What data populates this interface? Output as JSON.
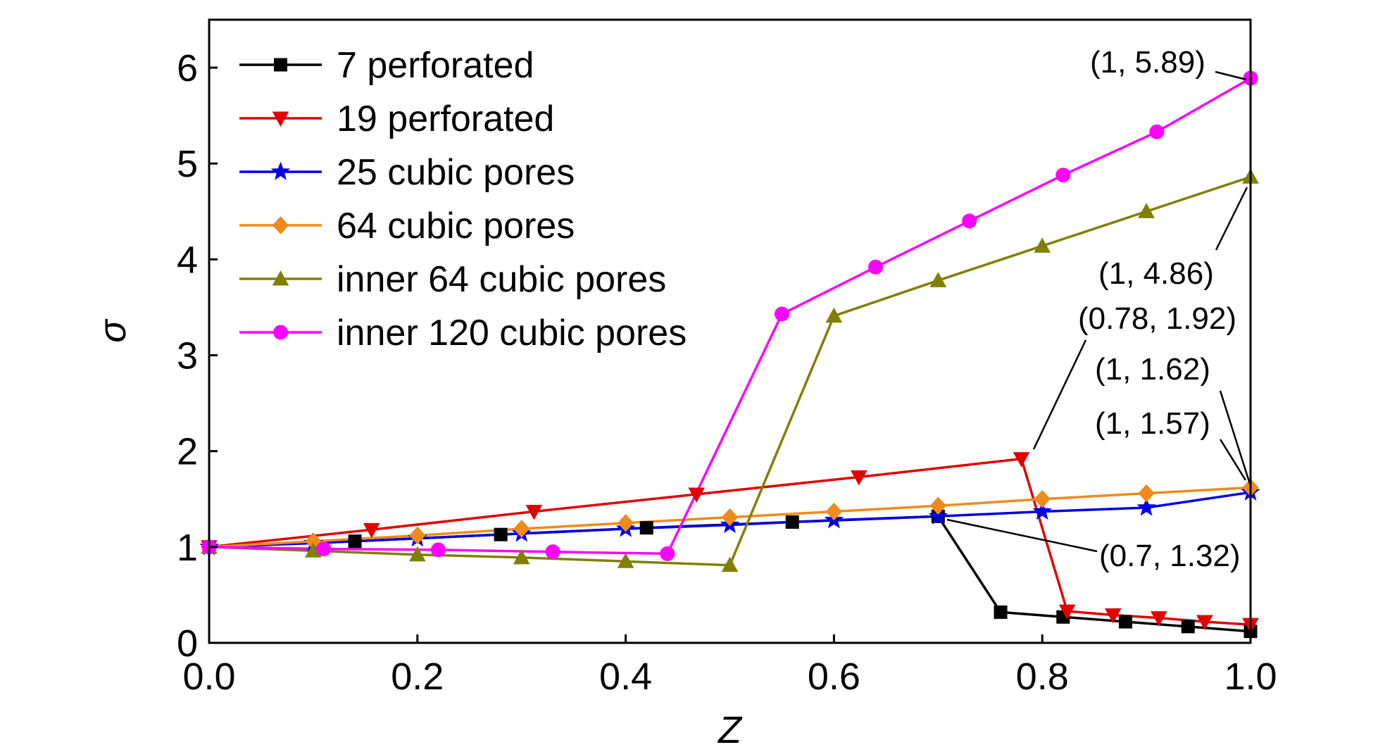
{
  "chart_data": {
    "type": "line",
    "xlabel": "Z",
    "ylabel": "σ",
    "xlim": [
      0,
      1
    ],
    "ylim": [
      0,
      6.5
    ],
    "xticks": [
      "0.0",
      "0.2",
      "0.4",
      "0.6",
      "0.8",
      "1.0"
    ],
    "xtick_values": [
      0,
      0.2,
      0.4,
      0.6,
      0.8,
      1.0
    ],
    "yticks": [
      "0",
      "1",
      "2",
      "3",
      "4",
      "5",
      "6"
    ],
    "ytick_values": [
      0,
      1,
      2,
      3,
      4,
      5,
      6
    ],
    "grid": false,
    "legend_position": "top-left",
    "series": [
      {
        "name": "7 perforated",
        "color": "#000000",
        "marker": "square",
        "x": [
          0,
          0.14,
          0.28,
          0.42,
          0.56,
          0.7,
          0.76,
          0.82,
          0.88,
          0.94,
          1.0
        ],
        "y": [
          1.0,
          1.06,
          1.13,
          1.2,
          1.26,
          1.32,
          0.32,
          0.27,
          0.22,
          0.17,
          0.12
        ]
      },
      {
        "name": "19 perforated",
        "color": "#e00000",
        "marker": "triangle-down",
        "x": [
          0,
          0.156,
          0.312,
          0.468,
          0.624,
          0.78,
          0.824,
          0.868,
          0.912,
          0.956,
          1.0
        ],
        "y": [
          1.0,
          1.18,
          1.37,
          1.55,
          1.73,
          1.92,
          0.33,
          0.29,
          0.26,
          0.22,
          0.19
        ]
      },
      {
        "name": "25 cubic pores",
        "color": "#0000e0",
        "marker": "star",
        "x": [
          0,
          0.1,
          0.2,
          0.3,
          0.4,
          0.5,
          0.6,
          0.7,
          0.8,
          0.9,
          1.0
        ],
        "y": [
          1.0,
          1.04,
          1.09,
          1.14,
          1.19,
          1.23,
          1.28,
          1.32,
          1.37,
          1.41,
          1.57
        ]
      },
      {
        "name": "64 cubic pores",
        "color": "#f08a1c",
        "marker": "diamond",
        "x": [
          0,
          0.1,
          0.2,
          0.3,
          0.4,
          0.5,
          0.6,
          0.7,
          0.8,
          0.9,
          1.0
        ],
        "y": [
          1.0,
          1.06,
          1.12,
          1.19,
          1.25,
          1.31,
          1.37,
          1.43,
          1.5,
          1.56,
          1.62
        ]
      },
      {
        "name": "inner 64 cubic pores",
        "color": "#808000",
        "marker": "triangle-up",
        "x": [
          0,
          0.1,
          0.2,
          0.3,
          0.4,
          0.5,
          0.6,
          0.7,
          0.8,
          0.9,
          1.0
        ],
        "y": [
          1.0,
          0.96,
          0.92,
          0.89,
          0.85,
          0.81,
          3.41,
          3.78,
          4.14,
          4.5,
          4.86
        ]
      },
      {
        "name": "inner 120 cubic pores",
        "color": "#ff00ff",
        "marker": "circle",
        "x": [
          0,
          0.11,
          0.22,
          0.33,
          0.44,
          0.55,
          0.64,
          0.73,
          0.82,
          0.91,
          1.0
        ],
        "y": [
          1.0,
          0.98,
          0.97,
          0.95,
          0.93,
          3.43,
          3.92,
          4.4,
          4.88,
          5.33,
          5.89
        ]
      }
    ],
    "annotations": [
      {
        "text": "(1, 5.89)",
        "x": 1.0,
        "y": 5.89
      },
      {
        "text": "(1, 4.86)",
        "x": 1.0,
        "y": 4.86
      },
      {
        "text": "(0.78, 1.92)",
        "x": 0.78,
        "y": 1.92
      },
      {
        "text": "(1, 1.62)",
        "x": 1.0,
        "y": 1.62
      },
      {
        "text": "(1, 1.57)",
        "x": 1.0,
        "y": 1.57
      },
      {
        "text": "(0.7, 1.32)",
        "x": 0.7,
        "y": 1.32
      }
    ]
  }
}
